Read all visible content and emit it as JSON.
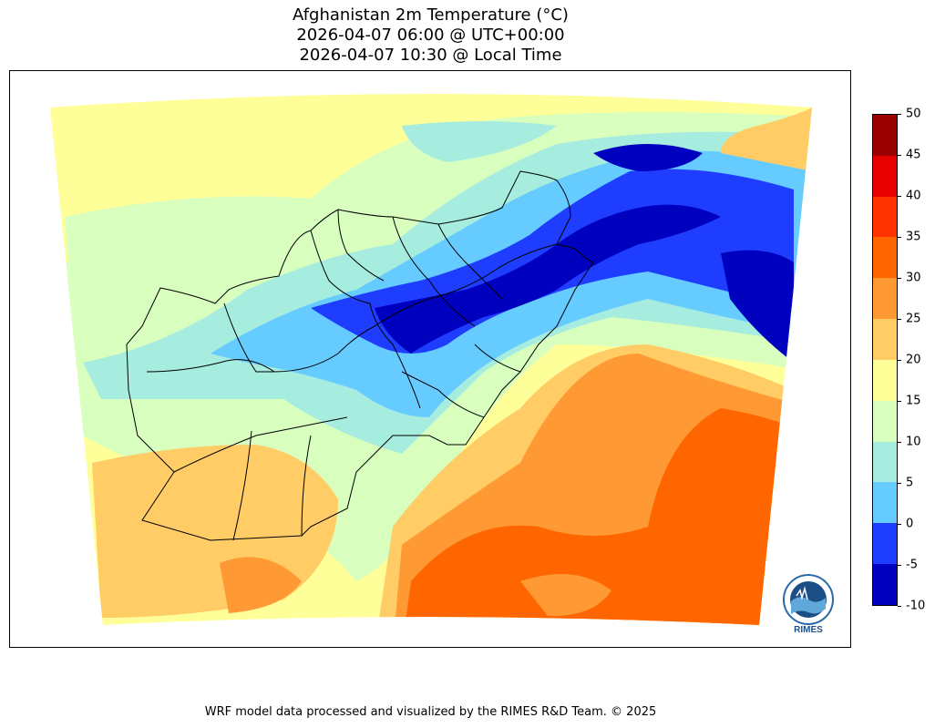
{
  "title": {
    "line1": "Afghanistan 2m Temperature (°C)",
    "line2": "2026-04-07 06:00 @ UTC+00:00",
    "line3": "2026-04-07 10:30 @ Local Time"
  },
  "colorbar": {
    "ticks": [
      "50",
      "45",
      "40",
      "35",
      "30",
      "25",
      "20",
      "15",
      "10",
      "5",
      "0",
      "-5",
      "-10"
    ],
    "colors": [
      "#9b0000",
      "#e60000",
      "#ff3300",
      "#ff6600",
      "#ff9933",
      "#ffcc66",
      "#ffff99",
      "#d9ffbf",
      "#a6ede0",
      "#66ccff",
      "#1f3dff",
      "#0000bf"
    ],
    "min": -10,
    "max": 50,
    "step": 5,
    "unit": "°C"
  },
  "palette": {
    "t-10": "#0000bf",
    "t-5": "#1f3dff",
    "t0": "#66ccff",
    "t5": "#a6ede0",
    "t10": "#d9ffbf",
    "t15": "#ffff99",
    "t20": "#ffcc66",
    "t25": "#ff9933",
    "t30": "#ff6600",
    "border": "#000000"
  },
  "logo": {
    "text": "RIMES"
  },
  "footer": "WRF model data processed and visualized by the RIMES R&D Team. © 2025"
}
